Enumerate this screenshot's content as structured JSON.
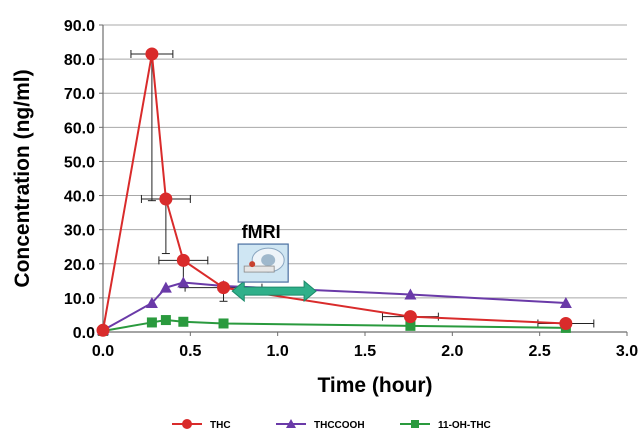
{
  "chart_data": {
    "type": "line",
    "title": "",
    "xlabel": "Time (hour)",
    "ylabel": "Concentration (ng/ml)",
    "xlim": [
      0,
      3
    ],
    "ylim": [
      0,
      90
    ],
    "xticks": [
      0,
      0.5,
      1,
      1.5,
      2,
      2.5,
      3
    ],
    "yticks": [
      0,
      10,
      20,
      30,
      40,
      50,
      60,
      70,
      80,
      90
    ],
    "xtick_labels": [
      "0.0",
      "0.5",
      "1.0",
      "1.5",
      "2.0",
      "2.5",
      "3.0"
    ],
    "ytick_labels": [
      "0.0",
      "10.0",
      "20.0",
      "30.0",
      "40.0",
      "50.0",
      "60.0",
      "70.0",
      "80.0",
      "90.0"
    ],
    "grid": true,
    "legend_position": "bottom",
    "series": [
      {
        "name": "THC",
        "color": "#d92b2b",
        "marker": "circle",
        "x": [
          0.0,
          0.28,
          0.36,
          0.46,
          0.69,
          1.76,
          2.65
        ],
        "y": [
          0.5,
          81.5,
          39.0,
          21.0,
          13.0,
          4.5,
          2.5
        ],
        "x_err": [
          0,
          0.12,
          0.14,
          0.14,
          0.22,
          0.16,
          0.16
        ],
        "y_err_low": [
          0,
          43,
          16,
          8,
          4,
          0,
          0
        ],
        "y_err_high": [
          0,
          0,
          0,
          0,
          0,
          0,
          0
        ]
      },
      {
        "name": "THCCOOH",
        "color": "#6a3aa8",
        "marker": "triangle",
        "x": [
          0.0,
          0.28,
          0.36,
          0.46,
          0.69,
          1.76,
          2.65
        ],
        "y": [
          0.5,
          8.5,
          13.0,
          14.5,
          13.5,
          11.0,
          8.5
        ],
        "x_err": [
          0,
          0,
          0,
          0,
          0,
          0,
          0
        ],
        "y_err_low": [
          0,
          0,
          0,
          0,
          0,
          0,
          0
        ],
        "y_err_high": [
          0,
          0,
          0,
          0,
          0,
          0,
          0
        ]
      },
      {
        "name": "11-OH-THC",
        "color": "#2a9a3e",
        "marker": "square",
        "x": [
          0.0,
          0.28,
          0.36,
          0.46,
          0.69,
          1.76,
          2.65
        ],
        "y": [
          0.3,
          2.8,
          3.5,
          3.0,
          2.5,
          1.8,
          1.2
        ],
        "x_err": [
          0,
          0,
          0,
          0,
          0,
          0,
          0
        ],
        "y_err_low": [
          0,
          0,
          0,
          0,
          0,
          0,
          0
        ],
        "y_err_high": [
          0,
          0,
          0,
          0,
          0,
          0,
          0
        ]
      }
    ],
    "annotations": [
      {
        "text": "fMRI",
        "type": "double-arrow",
        "x_range": [
          0.74,
          1.22
        ],
        "y": 12,
        "color": "#2fb08a",
        "icon": "mri-scanner-icon"
      }
    ]
  }
}
